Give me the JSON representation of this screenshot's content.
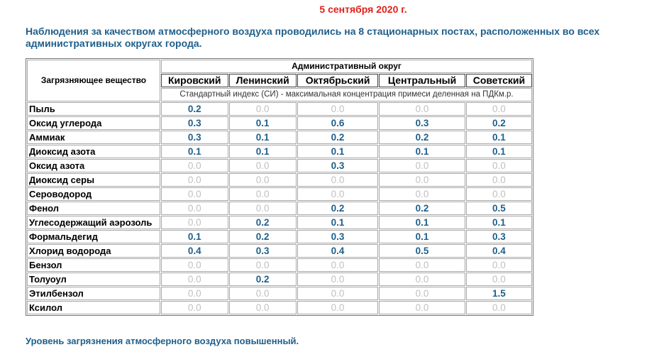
{
  "date": "5 сентября 2020 г.",
  "intro": "Наблюдения за качеством атмосферного воздуха проводились на 8 стационарных постах, расположенных во всех административных округах города.",
  "table": {
    "corner_header": "Загрязняющее вещество",
    "group_header": "Административный округ",
    "districts": [
      "Кировский",
      "Ленинский",
      "Октябрьский",
      "Центральный",
      "Советский"
    ],
    "note": "Стандартный индекс (СИ) - максимальная концентрация примеси деленная на ПДКм.р.",
    "rows": [
      {
        "substance": "Пыль",
        "values": [
          "0.2",
          "0.0",
          "0.0",
          "0.0",
          "0.0"
        ]
      },
      {
        "substance": "Оксид углерода",
        "values": [
          "0.3",
          "0.1",
          "0.6",
          "0.3",
          "0.2"
        ]
      },
      {
        "substance": "Аммиак",
        "values": [
          "0.3",
          "0.1",
          "0.2",
          "0.2",
          "0.1"
        ]
      },
      {
        "substance": "Диоксид азота",
        "values": [
          "0.1",
          "0.1",
          "0.1",
          "0.1",
          "0.1"
        ]
      },
      {
        "substance": "Оксид азота",
        "values": [
          "0.0",
          "0.0",
          "0.3",
          "0.0",
          "0.0"
        ]
      },
      {
        "substance": "Диоксид серы",
        "values": [
          "0.0",
          "0.0",
          "0.0",
          "0.0",
          "0.0"
        ]
      },
      {
        "substance": "Сероводород",
        "values": [
          "0.0",
          "0.0",
          "0.0",
          "0.0",
          "0.0"
        ]
      },
      {
        "substance": "Фенол",
        "values": [
          "0.0",
          "0.0",
          "0.2",
          "0.2",
          "0.5"
        ]
      },
      {
        "substance": "Углесодержащий аэрозоль",
        "values": [
          "0.0",
          "0.2",
          "0.1",
          "0.1",
          "0.1"
        ]
      },
      {
        "substance": "Формальдегид",
        "values": [
          "0.1",
          "0.2",
          "0.3",
          "0.1",
          "0.3"
        ]
      },
      {
        "substance": "Хлорид водорода",
        "values": [
          "0.4",
          "0.3",
          "0.4",
          "0.5",
          "0.4"
        ]
      },
      {
        "substance": "Бензол",
        "values": [
          "0.0",
          "0.0",
          "0.0",
          "0.0",
          "0.0"
        ]
      },
      {
        "substance": "Толуоул",
        "values": [
          "0.0",
          "0.2",
          "0.0",
          "0.0",
          "0.0"
        ]
      },
      {
        "substance": "Этилбензол",
        "values": [
          "0.0",
          "0.0",
          "0.0",
          "0.0",
          "1.5"
        ]
      },
      {
        "substance": "Ксилол",
        "values": [
          "0.0",
          "0.0",
          "0.0",
          "0.0",
          "0.0"
        ]
      }
    ]
  },
  "footer": "Уровень загрязнения атмосферного воздуха повышенный.",
  "colors": {
    "date": "#e0201a",
    "text_blue": "#1f5f8b",
    "zero_value": "#c0c0c0"
  }
}
